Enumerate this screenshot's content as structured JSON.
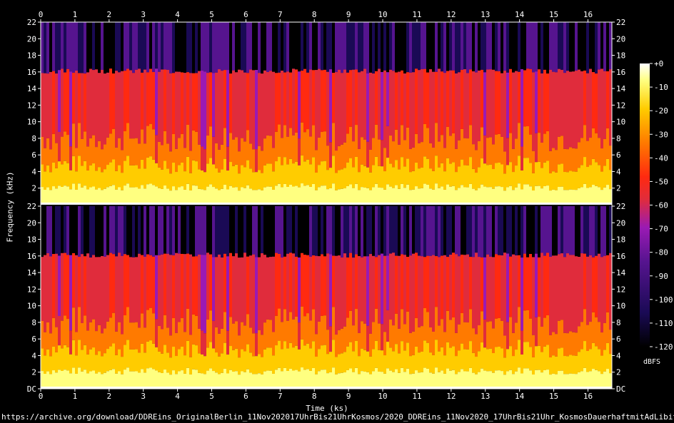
{
  "chart_data": {
    "type": "heatmap",
    "subtype": "spectrogram",
    "channels": 2,
    "xlabel": "Time (ks)",
    "ylabel": "Frequency (kHz)",
    "x_ticks": [
      "0",
      "1",
      "2",
      "3",
      "4",
      "5",
      "6",
      "7",
      "8",
      "9",
      "10",
      "11",
      "12",
      "13",
      "14",
      "15",
      "16"
    ],
    "xlim": [
      0,
      16.7
    ],
    "y_ticks": [
      "DC",
      "2",
      "4",
      "6",
      "8",
      "10",
      "12",
      "14",
      "16",
      "18",
      "20",
      "22"
    ],
    "ylim": [
      0,
      22
    ],
    "colorbar": {
      "unit": "dBFS",
      "ticks": [
        "+0",
        "-10",
        "-20",
        "-30",
        "-40",
        "-50",
        "-60",
        "-70",
        "-80",
        "-90",
        "-100",
        "-110",
        "-120"
      ],
      "range": [
        -120,
        0
      ]
    },
    "cutoff_khz": 16,
    "colors": [
      "#000000",
      "#1a0a55",
      "#56148f",
      "#9a1ab4",
      "#e02c3c",
      "#ff2a10",
      "#ff7a00",
      "#ffcc00",
      "#ffff80",
      "#ffffff"
    ]
  },
  "source_url": "https://archive.org/download/DDREins_OriginalBerlin_11Nov202017UhrBis21UhrKosmos/2020_DDREins_11Nov2020_17UhrBis21Uhr_KosmosDauerhaftmitAdLibitum.mp3"
}
